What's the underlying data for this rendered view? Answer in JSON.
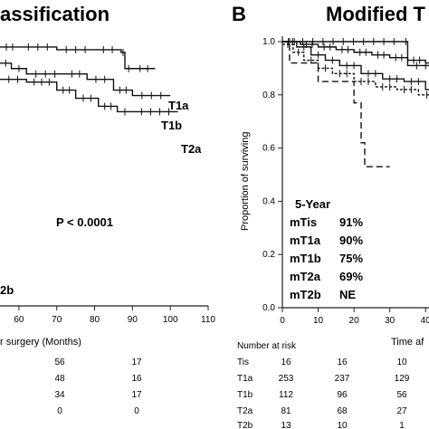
{
  "panel_a": {
    "title": "assification",
    "x_ticks": [
      "60",
      "70",
      "80",
      "90",
      "100",
      "110"
    ],
    "xlabel": "r surgery  (Months)",
    "p_value": "P < 0.0001",
    "curve_labels": [
      "T1a",
      "T1b",
      "T2a",
      "2b"
    ],
    "risk_table": {
      "columns": [
        [
          "56",
          "48",
          "34",
          "0"
        ],
        [
          "17",
          "16",
          "17",
          "0"
        ]
      ]
    }
  },
  "panel_b": {
    "letter": "B",
    "title": "Modified T",
    "ylabel": "Proportion of surviving",
    "y_ticks": [
      "1.0",
      "0.8",
      "0.6",
      "0.4",
      "0.2",
      "0.0"
    ],
    "x_ticks": [
      "0",
      "10",
      "20",
      "30",
      "40"
    ],
    "xlabel": "Time af",
    "legend": {
      "header": "5-Year",
      "rows": [
        {
          "name": "mTis",
          "value": "91%"
        },
        {
          "name": "mT1a",
          "value": "90%"
        },
        {
          "name": "mT1b",
          "value": "75%"
        },
        {
          "name": "mT2a",
          "value": "69%"
        },
        {
          "name": "mT2b",
          "value": "NE"
        }
      ]
    },
    "risk_table": {
      "header": "Number at risk",
      "rows": [
        {
          "name": "Tis",
          "values": [
            "16",
            "16",
            "10"
          ]
        },
        {
          "name": "T1a",
          "values": [
            "253",
            "237",
            "129"
          ]
        },
        {
          "name": "T1b",
          "values": [
            "112",
            "96",
            "56"
          ]
        },
        {
          "name": "T2a",
          "values": [
            "81",
            "68",
            "27"
          ]
        },
        {
          "name": "T2b",
          "values": [
            "13",
            "10",
            "1"
          ]
        }
      ]
    }
  },
  "chart_data": [
    {
      "type": "line",
      "panel": "A",
      "title": "assification",
      "xlabel": "r surgery  (Months)",
      "xlim": [
        55,
        110
      ],
      "ylim": [
        0,
        1
      ],
      "series": [
        {
          "name": "T1a",
          "x": [
            55,
            60,
            70,
            80,
            87,
            88,
            90,
            96
          ],
          "y": [
            0.96,
            0.96,
            0.95,
            0.95,
            0.94,
            0.88,
            0.88,
            0.88
          ]
        },
        {
          "name": "T1b",
          "x": [
            55,
            58,
            62,
            72,
            78,
            85,
            90,
            100
          ],
          "y": [
            0.9,
            0.88,
            0.86,
            0.86,
            0.84,
            0.8,
            0.78,
            0.78
          ]
        },
        {
          "name": "T2a",
          "x": [
            55,
            62,
            70,
            75,
            81,
            86,
            90,
            102
          ],
          "y": [
            0.84,
            0.83,
            0.8,
            0.77,
            0.74,
            0.72,
            0.72,
            0.72
          ]
        }
      ]
    },
    {
      "type": "line",
      "panel": "B",
      "title": "Modified T",
      "ylabel": "Proportion of surviving",
      "xlim": [
        0,
        45
      ],
      "ylim": [
        0,
        1
      ],
      "series": [
        {
          "name": "mTis",
          "x": [
            0,
            34,
            35,
            45
          ],
          "y": [
            1.0,
            1.0,
            0.91,
            0.91
          ]
        },
        {
          "name": "mT1a",
          "x": [
            0,
            5,
            10,
            15,
            20,
            25,
            30,
            35,
            40,
            45
          ],
          "y": [
            1.0,
            0.99,
            0.98,
            0.97,
            0.96,
            0.95,
            0.94,
            0.93,
            0.92,
            0.9
          ]
        },
        {
          "name": "mT1b",
          "x": [
            0,
            4,
            8,
            12,
            16,
            22,
            28,
            34,
            40,
            45
          ],
          "y": [
            1.0,
            0.98,
            0.95,
            0.93,
            0.91,
            0.88,
            0.86,
            0.85,
            0.82,
            0.8
          ]
        },
        {
          "name": "mT2a",
          "x": [
            0,
            3,
            6,
            10,
            14,
            20,
            26,
            32,
            38,
            45
          ],
          "y": [
            0.99,
            0.96,
            0.93,
            0.9,
            0.88,
            0.85,
            0.83,
            0.82,
            0.8,
            0.79
          ]
        },
        {
          "name": "mT2b",
          "x": [
            0,
            2,
            8,
            10,
            18,
            20,
            22,
            23,
            24,
            30
          ],
          "y": [
            1.0,
            0.92,
            0.92,
            0.85,
            0.85,
            0.77,
            0.62,
            0.53,
            0.53,
            0.53
          ]
        }
      ]
    }
  ]
}
